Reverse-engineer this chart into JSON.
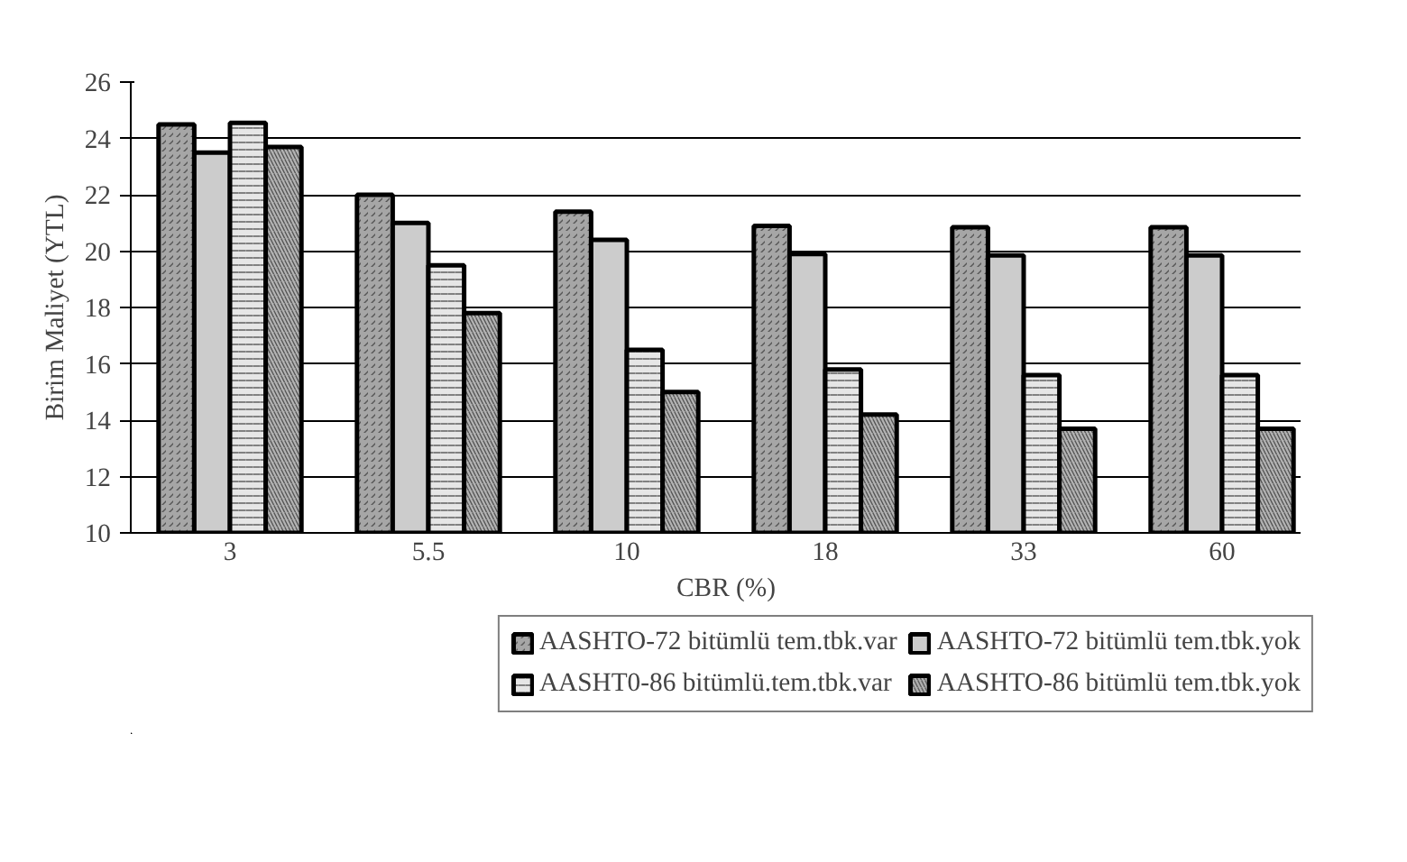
{
  "chart_data": {
    "type": "bar",
    "xlabel": "CBR (%)",
    "ylabel": "Birim Maliyet (YTL)",
    "categories": [
      "3",
      "5.5",
      "10",
      "18",
      "33",
      "60"
    ],
    "series": [
      {
        "name": "AASHTO-72 bitümlü tem.tbk.var",
        "color": "#a6a6a6",
        "values": [
          24.5,
          22.0,
          21.4,
          20.9,
          20.85,
          20.85
        ]
      },
      {
        "name": "AASHTO-72 bitümlü tem.tbk.yok",
        "color": "#cccccc",
        "values": [
          23.5,
          21.0,
          20.4,
          19.9,
          19.85,
          19.85
        ]
      },
      {
        "name": "AASHT0-86 bitümlü.tem.tbk.var",
        "color": "#e6e6e6",
        "values": [
          24.55,
          19.5,
          16.5,
          15.8,
          15.6,
          15.6
        ]
      },
      {
        "name": "AASHTO-86 bitümlü tem.tbk.yok",
        "color": "#b3b3b3",
        "values": [
          23.7,
          17.8,
          15.0,
          14.2,
          13.7,
          13.7
        ]
      }
    ],
    "ylim": [
      10,
      26
    ],
    "yticks": [
      10,
      12,
      14,
      16,
      18,
      20,
      22,
      24,
      26
    ],
    "grid": "y",
    "legend": "bottom"
  }
}
